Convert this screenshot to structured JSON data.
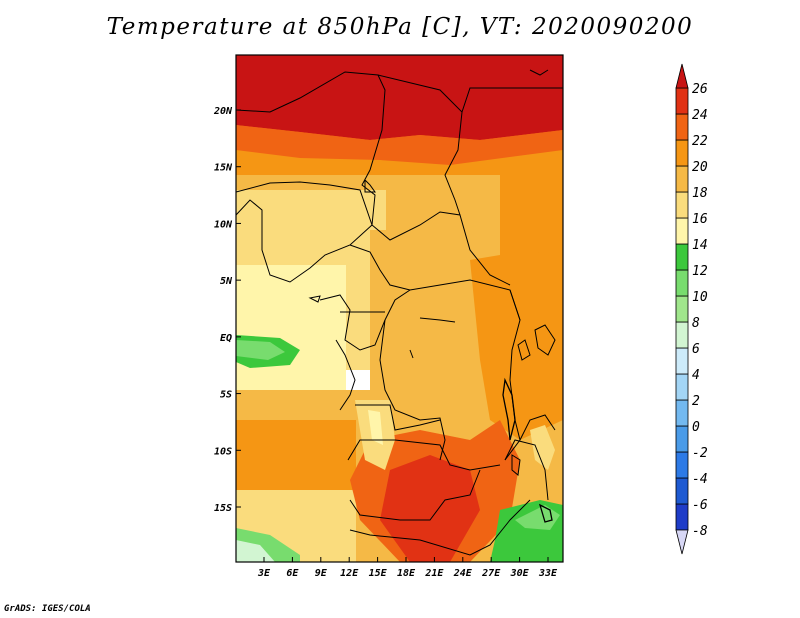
{
  "title": "Temperature at 850hPa [C], VT: 2020090200",
  "credit": "GrADS: IGES/COLA",
  "map": {
    "region": "Central Africa",
    "lon_range": [
      0,
      35
    ],
    "lat_range": [
      -20,
      24
    ],
    "x_ticks": [
      {
        "lon": 3,
        "label": "3E"
      },
      {
        "lon": 6,
        "label": "6E"
      },
      {
        "lon": 9,
        "label": "9E"
      },
      {
        "lon": 12,
        "label": "12E"
      },
      {
        "lon": 15,
        "label": "15E"
      },
      {
        "lon": 18,
        "label": "18E"
      },
      {
        "lon": 21,
        "label": "21E"
      },
      {
        "lon": 24,
        "label": "24E"
      },
      {
        "lon": 27,
        "label": "27E"
      },
      {
        "lon": 30,
        "label": "30E"
      },
      {
        "lon": 33,
        "label": "33E"
      }
    ],
    "y_ticks": [
      {
        "lat": 20,
        "label": "20N"
      },
      {
        "lat": 15,
        "label": "15N"
      },
      {
        "lat": 10,
        "label": "10N"
      },
      {
        "lat": 5,
        "label": "5N"
      },
      {
        "lat": 0,
        "label": "EQ"
      },
      {
        "lat": -5,
        "label": "5S"
      },
      {
        "lat": -10,
        "label": "10S"
      },
      {
        "lat": -15,
        "label": "15S"
      }
    ]
  },
  "colorbar": {
    "levels": [
      "-8",
      "-6",
      "-4",
      "-2",
      "0",
      "2",
      "4",
      "6",
      "8",
      "10",
      "12",
      "14",
      "16",
      "18",
      "20",
      "22",
      "24",
      "26"
    ],
    "colors": [
      "#0a0a80",
      "#1e3cc8",
      "#1e5ad2",
      "#2d7ae6",
      "#4a9be8",
      "#73b9f0",
      "#a3d5f5",
      "#cdebfa",
      "#d2f5d2",
      "#a0e68c",
      "#78dc6e",
      "#3cc83c",
      "#fff5aa",
      "#fadc7d",
      "#f5b946",
      "#f59614",
      "#f06414",
      "#e13214",
      "#c81414"
    ]
  }
}
